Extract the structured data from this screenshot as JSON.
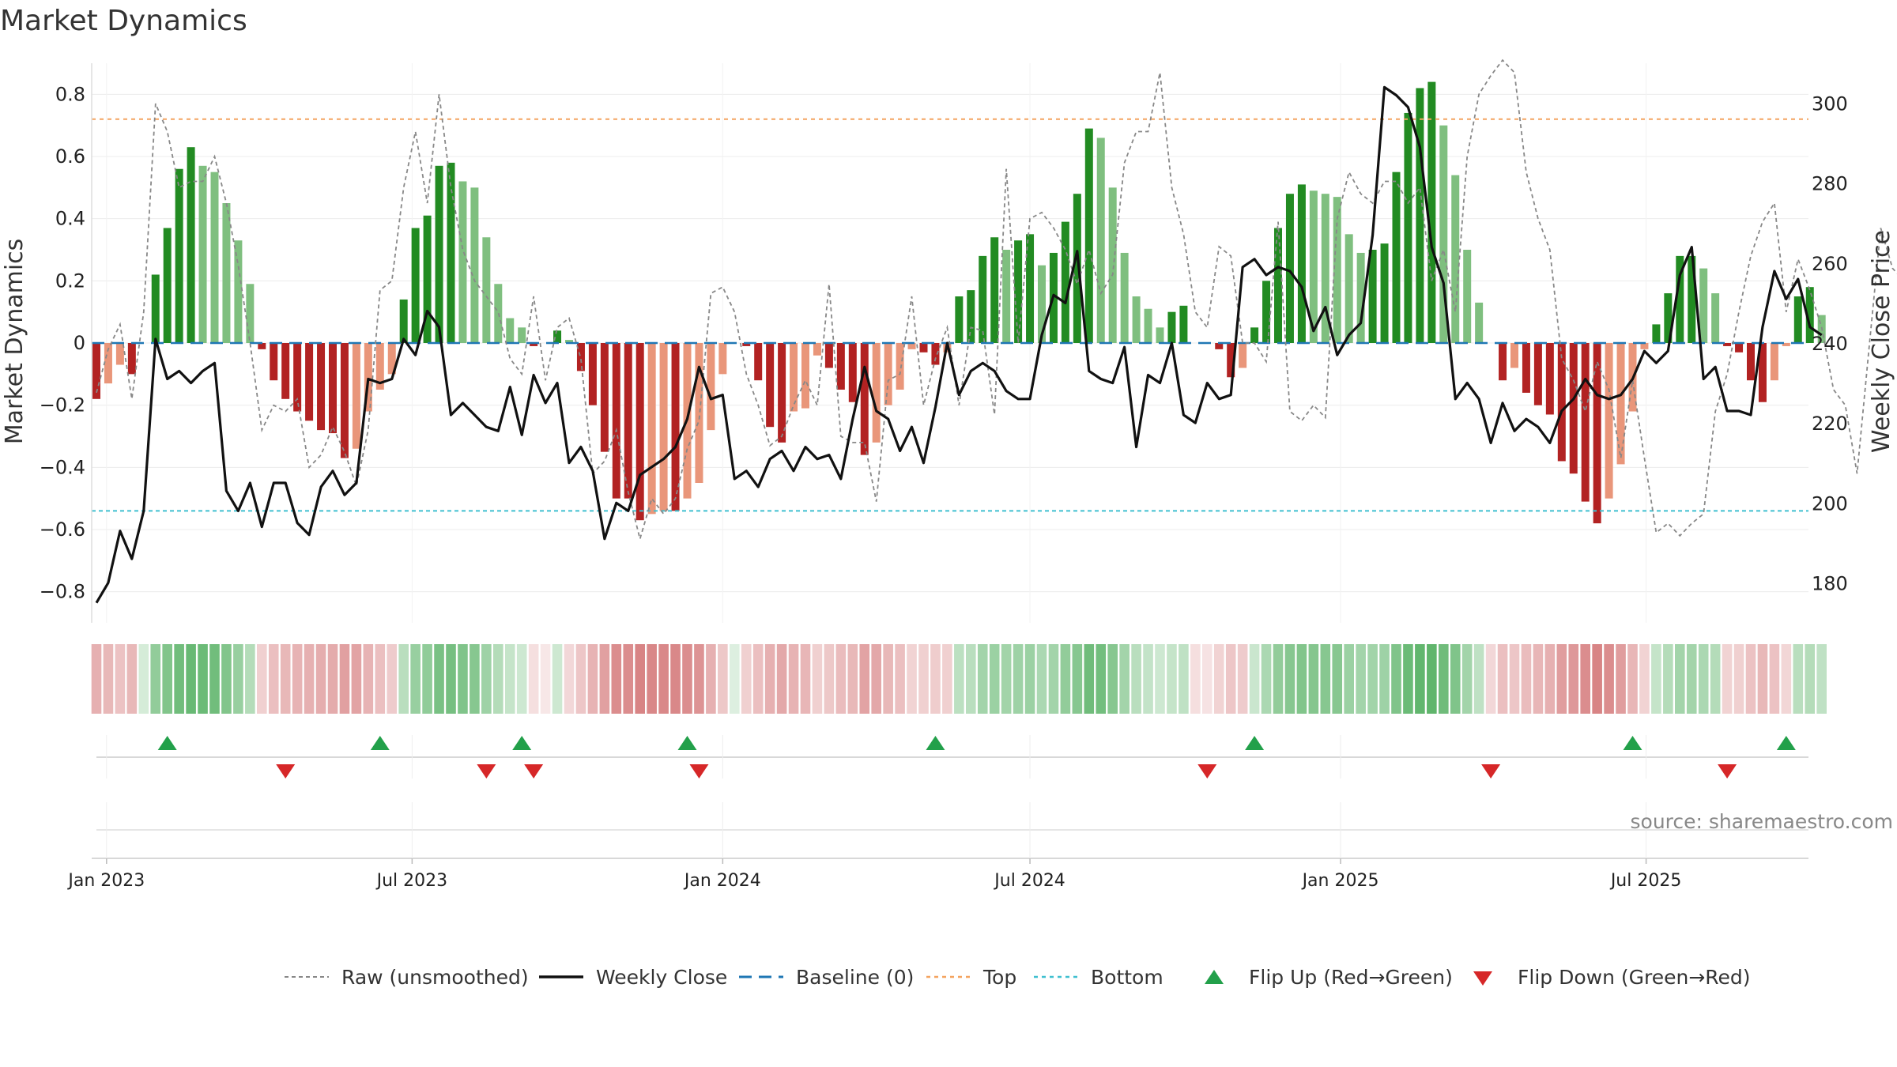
{
  "chart_data": {
    "type": "bar",
    "title": "Market Dynamics",
    "ylabel_left": "Market Dynamics",
    "ylabel_right": "Weekly Close Price",
    "ylim_left": [
      -0.9,
      0.9
    ],
    "ylim_right": [
      170,
      310
    ],
    "yticks_left": [
      -0.8,
      -0.6,
      -0.4,
      -0.2,
      0,
      0.2,
      0.4,
      0.6,
      0.8
    ],
    "yticks_left_labels": [
      "−0.8",
      "−0.6",
      "−0.4",
      "−0.2",
      "0",
      "0.2",
      "0.4",
      "0.6",
      "0.8"
    ],
    "yticks_right": [
      180,
      200,
      220,
      240,
      260,
      280,
      300
    ],
    "yticks_right_labels": [
      "180",
      "200",
      "220",
      "240",
      "260",
      "280",
      "300"
    ],
    "x_start": "2022-12-26",
    "xtick_dates": [
      "2023-01-01",
      "2023-07-01",
      "2024-01-01",
      "2024-07-01",
      "2025-01-01",
      "2025-07-01"
    ],
    "xtick_labels": [
      "Jan 2023",
      "Jul 2023",
      "Jan 2024",
      "Jul 2024",
      "Jan 2025",
      "Jul 2025"
    ],
    "top_threshold": 0.72,
    "bottom_threshold": -0.54,
    "baseline": 0,
    "colors": {
      "strong_green": "#228b22",
      "weak_green": "#7fbf7f",
      "strong_red": "#b22222",
      "weak_red": "#e9967a",
      "raw": "#888888",
      "close": "#111111",
      "baseline": "#1f77b4",
      "top": "#f4a460",
      "bottom": "#40c0d0",
      "flip_up": "#22a04a",
      "flip_down": "#d62728"
    },
    "series": [
      {
        "name": "Market Dynamics",
        "values": [
          -0.18,
          -0.13,
          -0.07,
          -0.1,
          0.0,
          0.22,
          0.37,
          0.56,
          0.63,
          0.57,
          0.55,
          0.45,
          0.33,
          0.19,
          -0.02,
          -0.12,
          -0.18,
          -0.22,
          -0.25,
          -0.28,
          -0.29,
          -0.37,
          -0.34,
          -0.22,
          -0.15,
          -0.1,
          0.14,
          0.37,
          0.41,
          0.57,
          0.58,
          0.52,
          0.5,
          0.34,
          0.19,
          0.08,
          0.05,
          -0.01,
          0.0,
          0.04,
          0.01,
          -0.09,
          -0.2,
          -0.35,
          -0.5,
          -0.5,
          -0.57,
          -0.55,
          -0.54,
          -0.54,
          -0.5,
          -0.45,
          -0.28,
          -0.1,
          0.0,
          -0.01,
          -0.12,
          -0.27,
          -0.32,
          -0.22,
          -0.21,
          -0.04,
          -0.08,
          -0.15,
          -0.19,
          -0.36,
          -0.32,
          -0.2,
          -0.15,
          -0.02,
          -0.03,
          -0.07,
          -0.03,
          0.15,
          0.17,
          0.28,
          0.34,
          0.3,
          0.33,
          0.35,
          0.25,
          0.29,
          0.39,
          0.48,
          0.69,
          0.66,
          0.5,
          0.29,
          0.15,
          0.11,
          0.05,
          0.1,
          0.12,
          0.0,
          0.0,
          -0.02,
          -0.11,
          -0.08,
          0.05,
          0.2,
          0.37,
          0.48,
          0.51,
          0.49,
          0.48,
          0.47,
          0.35,
          0.29,
          0.3,
          0.32,
          0.55,
          0.74,
          0.82,
          0.84,
          0.7,
          0.54,
          0.3,
          0.13,
          0.0,
          -0.12,
          -0.08,
          -0.16,
          -0.2,
          -0.23,
          -0.38,
          -0.42,
          -0.51,
          -0.58,
          -0.5,
          -0.39,
          -0.22,
          -0.02,
          0.06,
          0.16,
          0.28,
          0.28,
          0.24,
          0.16,
          -0.01,
          -0.03,
          -0.12,
          -0.19,
          -0.12,
          -0.01,
          0.15,
          0.18,
          0.09
        ]
      },
      {
        "name": "Raw (unsmoothed)",
        "values": [
          -0.16,
          -0.02,
          0.06,
          -0.18,
          0.1,
          0.77,
          0.68,
          0.5,
          0.52,
          0.52,
          0.6,
          0.45,
          0.25,
          0.0,
          -0.28,
          -0.2,
          -0.22,
          -0.18,
          -0.4,
          -0.36,
          -0.27,
          -0.35,
          -0.46,
          -0.28,
          0.17,
          0.2,
          0.5,
          0.68,
          0.45,
          0.8,
          0.5,
          0.3,
          0.2,
          0.15,
          0.1,
          -0.05,
          -0.1,
          0.15,
          -0.12,
          0.05,
          0.08,
          -0.05,
          -0.42,
          -0.38,
          -0.28,
          -0.48,
          -0.63,
          -0.5,
          -0.55,
          -0.5,
          -0.34,
          -0.25,
          0.16,
          0.18,
          0.1,
          -0.1,
          -0.2,
          -0.33,
          -0.3,
          -0.2,
          -0.12,
          -0.2,
          0.19,
          -0.3,
          -0.32,
          -0.32,
          -0.51,
          -0.12,
          -0.1,
          0.15,
          -0.2,
          -0.05,
          0.05,
          -0.2,
          0.05,
          0.04,
          -0.23,
          0.56,
          0.0,
          0.4,
          0.42,
          0.37,
          0.3,
          0.19,
          0.3,
          0.16,
          0.22,
          0.58,
          0.68,
          0.68,
          0.87,
          0.5,
          0.35,
          0.1,
          0.05,
          0.31,
          0.28,
          0.0,
          0.0,
          -0.06,
          0.39,
          -0.22,
          -0.25,
          -0.2,
          -0.24,
          0.4,
          0.55,
          0.48,
          0.45,
          0.52,
          0.52,
          0.45,
          0.5,
          0.2,
          0.3,
          0.1,
          0.6,
          0.8,
          0.86,
          0.91,
          0.87,
          0.55,
          0.4,
          0.3,
          -0.05,
          -0.12,
          -0.22,
          -0.06,
          -0.15,
          -0.37,
          -0.12,
          -0.37,
          -0.61,
          -0.58,
          -0.62,
          -0.58,
          -0.55,
          -0.22,
          -0.1,
          0.1,
          0.28,
          0.39,
          0.45,
          0.1,
          0.27,
          0.17,
          0.05,
          -0.15,
          -0.2,
          -0.42,
          -0.02,
          0.37,
          0.24,
          0.2,
          0.05,
          -0.02
        ]
      },
      {
        "name": "Weekly Close",
        "values": [
          175,
          180,
          193,
          186,
          198,
          241,
          231,
          233,
          230,
          233,
          235,
          203,
          198,
          205,
          194,
          205,
          205,
          195,
          192,
          204,
          208,
          202,
          205,
          231,
          230,
          231,
          241,
          237,
          248,
          244,
          222,
          225,
          222,
          219,
          218,
          229,
          217,
          232,
          225,
          230,
          210,
          214,
          208,
          191,
          200,
          198,
          207,
          209,
          211,
          214,
          221,
          234,
          226,
          227,
          206,
          208,
          204,
          211,
          213,
          208,
          214,
          211,
          212,
          206,
          221,
          234,
          223,
          221,
          213,
          219,
          210,
          224,
          240,
          227,
          233,
          235,
          233,
          228,
          226,
          226,
          242,
          252,
          250,
          263,
          233,
          231,
          230,
          239,
          214,
          232,
          230,
          240,
          222,
          220,
          230,
          226,
          227,
          259,
          261,
          257,
          259,
          258,
          254,
          243,
          249,
          237,
          242,
          245,
          267,
          304,
          302,
          299,
          289,
          264,
          255,
          226,
          230,
          226,
          215,
          225,
          218,
          221,
          219,
          215,
          223,
          226,
          231,
          227,
          226,
          227,
          231,
          238,
          235,
          238,
          257,
          264,
          231,
          234,
          223,
          223,
          222,
          244,
          258,
          251,
          256,
          244,
          242
        ]
      }
    ],
    "regime_cells": [
      [
        "r",
        0.5
      ],
      [
        "r",
        0.45
      ],
      [
        "r",
        0.38
      ],
      [
        "r",
        0.45
      ],
      [
        "g",
        0.25
      ],
      [
        "g",
        0.65
      ],
      [
        "g",
        0.75
      ],
      [
        "g",
        0.85
      ],
      [
        "g",
        0.9
      ],
      [
        "g",
        0.88
      ],
      [
        "g",
        0.85
      ],
      [
        "g",
        0.75
      ],
      [
        "g",
        0.62
      ],
      [
        "g",
        0.45
      ],
      [
        "r",
        0.3
      ],
      [
        "r",
        0.4
      ],
      [
        "r",
        0.45
      ],
      [
        "r",
        0.48
      ],
      [
        "r",
        0.5
      ],
      [
        "r",
        0.52
      ],
      [
        "r",
        0.53
      ],
      [
        "r",
        0.6
      ],
      [
        "r",
        0.58
      ],
      [
        "r",
        0.48
      ],
      [
        "r",
        0.4
      ],
      [
        "r",
        0.33
      ],
      [
        "g",
        0.42
      ],
      [
        "g",
        0.62
      ],
      [
        "g",
        0.66
      ],
      [
        "g",
        0.8
      ],
      [
        "g",
        0.82
      ],
      [
        "g",
        0.76
      ],
      [
        "g",
        0.72
      ],
      [
        "g",
        0.58
      ],
      [
        "g",
        0.45
      ],
      [
        "g",
        0.35
      ],
      [
        "g",
        0.3
      ],
      [
        "r",
        0.2
      ],
      [
        "r",
        0.15
      ],
      [
        "g",
        0.3
      ],
      [
        "r",
        0.25
      ],
      [
        "r",
        0.36
      ],
      [
        "r",
        0.48
      ],
      [
        "r",
        0.6
      ],
      [
        "r",
        0.72
      ],
      [
        "r",
        0.72
      ],
      [
        "r",
        0.78
      ],
      [
        "r",
        0.76
      ],
      [
        "r",
        0.75
      ],
      [
        "r",
        0.75
      ],
      [
        "r",
        0.72
      ],
      [
        "r",
        0.68
      ],
      [
        "r",
        0.5
      ],
      [
        "r",
        0.35
      ],
      [
        "g",
        0.2
      ],
      [
        "r",
        0.3
      ],
      [
        "r",
        0.4
      ],
      [
        "r",
        0.5
      ],
      [
        "r",
        0.55
      ],
      [
        "r",
        0.48
      ],
      [
        "r",
        0.46
      ],
      [
        "r",
        0.3
      ],
      [
        "r",
        0.35
      ],
      [
        "r",
        0.42
      ],
      [
        "r",
        0.45
      ],
      [
        "r",
        0.58
      ],
      [
        "r",
        0.55
      ],
      [
        "r",
        0.45
      ],
      [
        "r",
        0.4
      ],
      [
        "r",
        0.28
      ],
      [
        "r",
        0.3
      ],
      [
        "r",
        0.32
      ],
      [
        "r",
        0.3
      ],
      [
        "g",
        0.4
      ],
      [
        "g",
        0.42
      ],
      [
        "g",
        0.55
      ],
      [
        "g",
        0.6
      ],
      [
        "g",
        0.56
      ],
      [
        "g",
        0.58
      ],
      [
        "g",
        0.6
      ],
      [
        "g",
        0.5
      ],
      [
        "g",
        0.55
      ],
      [
        "g",
        0.65
      ],
      [
        "g",
        0.72
      ],
      [
        "g",
        0.86
      ],
      [
        "g",
        0.84
      ],
      [
        "g",
        0.72
      ],
      [
        "g",
        0.55
      ],
      [
        "g",
        0.42
      ],
      [
        "g",
        0.36
      ],
      [
        "g",
        0.3
      ],
      [
        "g",
        0.35
      ],
      [
        "g",
        0.38
      ],
      [
        "r",
        0.2
      ],
      [
        "r",
        0.18
      ],
      [
        "r",
        0.28
      ],
      [
        "r",
        0.36
      ],
      [
        "r",
        0.33
      ],
      [
        "g",
        0.32
      ],
      [
        "g",
        0.5
      ],
      [
        "g",
        0.65
      ],
      [
        "g",
        0.72
      ],
      [
        "g",
        0.75
      ],
      [
        "g",
        0.73
      ],
      [
        "g",
        0.72
      ],
      [
        "g",
        0.72
      ],
      [
        "g",
        0.6
      ],
      [
        "g",
        0.55
      ],
      [
        "g",
        0.56
      ],
      [
        "g",
        0.58
      ],
      [
        "g",
        0.76
      ],
      [
        "g",
        0.88
      ],
      [
        "g",
        0.94
      ],
      [
        "g",
        0.95
      ],
      [
        "g",
        0.86
      ],
      [
        "g",
        0.76
      ],
      [
        "g",
        0.55
      ],
      [
        "g",
        0.38
      ],
      [
        "r",
        0.25
      ],
      [
        "r",
        0.4
      ],
      [
        "r",
        0.36
      ],
      [
        "r",
        0.42
      ],
      [
        "r",
        0.46
      ],
      [
        "r",
        0.5
      ],
      [
        "r",
        0.62
      ],
      [
        "r",
        0.65
      ],
      [
        "r",
        0.72
      ],
      [
        "r",
        0.78
      ],
      [
        "r",
        0.72
      ],
      [
        "r",
        0.62
      ],
      [
        "r",
        0.46
      ],
      [
        "r",
        0.28
      ],
      [
        "g",
        0.35
      ],
      [
        "g",
        0.45
      ],
      [
        "g",
        0.55
      ],
      [
        "g",
        0.55
      ],
      [
        "g",
        0.5
      ],
      [
        "g",
        0.45
      ],
      [
        "r",
        0.28
      ],
      [
        "r",
        0.3
      ],
      [
        "r",
        0.38
      ],
      [
        "r",
        0.45
      ],
      [
        "r",
        0.38
      ],
      [
        "r",
        0.26
      ],
      [
        "g",
        0.42
      ],
      [
        "g",
        0.45
      ],
      [
        "g",
        0.38
      ]
    ],
    "flip_up_dates": [
      "2023-02-06",
      "2023-06-12",
      "2023-09-04",
      "2023-12-11",
      "2024-05-06",
      "2024-11-11",
      "2025-06-23",
      "2025-09-22"
    ],
    "flip_down_dates": [
      "2023-04-17",
      "2023-08-14",
      "2023-09-11",
      "2023-12-18",
      "2024-10-14",
      "2025-03-31",
      "2025-08-18"
    ],
    "legend": [
      {
        "label": "Raw (unsmoothed)",
        "kind": "dashed-line",
        "color": "#888888"
      },
      {
        "label": "Weekly Close",
        "kind": "solid-line",
        "color": "#111111"
      },
      {
        "label": "Baseline (0)",
        "kind": "dash-line",
        "color": "#1f77b4"
      },
      {
        "label": "Top",
        "kind": "dot-line",
        "color": "#f4a460"
      },
      {
        "label": "Bottom",
        "kind": "dot-line",
        "color": "#40c0d0"
      },
      {
        "label": "Flip Up (Red→Green)",
        "kind": "triangle-up",
        "color": "#22a04a"
      },
      {
        "label": "Flip Down (Green→Red)",
        "kind": "triangle-down",
        "color": "#d62728"
      }
    ],
    "source_text": "source: sharemaestro.com",
    "grid": true,
    "legend_position": "bottom"
  }
}
